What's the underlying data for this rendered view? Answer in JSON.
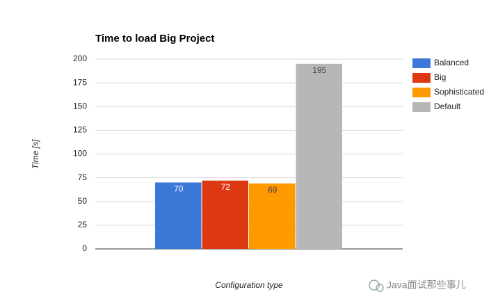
{
  "chart_data": {
    "type": "bar",
    "title": "Time to load Big Project",
    "y_label": "Time [s]",
    "x_label": "Configuration type",
    "categories": [
      null
    ],
    "series": [
      {
        "name": "Balanced",
        "color": "#3c78d8",
        "values": [
          70
        ]
      },
      {
        "name": "Big",
        "color": "#dc3912",
        "values": [
          72
        ]
      },
      {
        "name": "Sophisticated",
        "color": "#ff9900",
        "values": [
          69
        ]
      },
      {
        "name": "Default",
        "color": "#b7b7b7",
        "values": [
          195
        ]
      }
    ],
    "ylim": [
      0,
      200
    ],
    "yticks": [
      0,
      25,
      50,
      75,
      100,
      125,
      150,
      175,
      200
    ],
    "grid": true,
    "legend": "right",
    "watermark": "Java面试那些事儿"
  }
}
